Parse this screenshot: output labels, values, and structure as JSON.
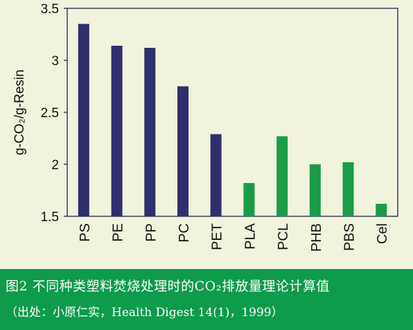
{
  "chart_data": {
    "type": "bar",
    "categories": [
      "PS",
      "PE",
      "PP",
      "PC",
      "PET",
      "PLA",
      "PCL",
      "PHB",
      "PBS",
      "Cel"
    ],
    "values": [
      3.35,
      3.14,
      3.12,
      2.75,
      2.29,
      1.82,
      2.27,
      2.0,
      2.02,
      1.62
    ],
    "bar_colors": [
      "#2f2f6c",
      "#2f2f6c",
      "#2f2f6c",
      "#2f2f6c",
      "#2f2f6c",
      "#1a9c48",
      "#1a9c48",
      "#1a9c48",
      "#1a9c48",
      "#1a9c48"
    ],
    "ylabel": "g-CO₂/g-Resin",
    "ylim": [
      1.5,
      3.5
    ],
    "yticks": [
      1.5,
      2,
      2.5,
      3,
      3.5
    ],
    "ytick_labels": [
      "1.5",
      "2",
      "2.5",
      "3",
      "3.5"
    ],
    "grid": false,
    "plot_background": "#f1f3dc",
    "axis_color": "#3a3a6a"
  },
  "caption": {
    "title": "图2 不同种类塑料焚烧处理时的CO₂排放量理论计算值",
    "source": "（出处：小原仁实，Health Digest 14(1)，1999）"
  }
}
